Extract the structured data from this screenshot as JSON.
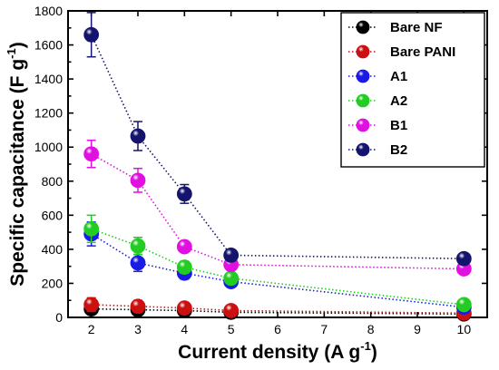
{
  "chart_data": {
    "type": "line",
    "title": "",
    "xlabel": "Current density (A g",
    "xlabel_sup": "-1",
    "xlabel_tail": ")",
    "ylabel": "Specific capacitance (F g",
    "ylabel_sup": "-1",
    "ylabel_tail": ")",
    "xlim": [
      1.5,
      10.5
    ],
    "ylim": [
      0,
      1800
    ],
    "x_ticks": [
      2,
      3,
      4,
      5,
      6,
      7,
      8,
      9,
      10
    ],
    "y_ticks": [
      0,
      200,
      400,
      600,
      800,
      1000,
      1200,
      1400,
      1600,
      1800
    ],
    "x": [
      2,
      3,
      4,
      5,
      10
    ],
    "legend_position": "top-right",
    "grid": false,
    "series": [
      {
        "name": "Bare NF",
        "color": "#000000",
        "values": [
          50,
          45,
          40,
          30,
          20
        ],
        "errors": [
          15,
          10,
          10,
          8,
          5
        ]
      },
      {
        "name": "Bare PANI",
        "color": "#cc1010",
        "values": [
          75,
          65,
          55,
          40,
          25
        ],
        "errors": [
          40,
          35,
          30,
          20,
          10
        ]
      },
      {
        "name": "A1",
        "color": "#1a1ae6",
        "values": [
          490,
          320,
          260,
          210,
          60
        ],
        "errors": [
          70,
          50,
          35,
          25,
          10
        ]
      },
      {
        "name": "A2",
        "color": "#22cc22",
        "values": [
          520,
          420,
          295,
          230,
          75
        ],
        "errors": [
          80,
          50,
          35,
          25,
          10
        ]
      },
      {
        "name": "B1",
        "color": "#e010e0",
        "values": [
          960,
          805,
          415,
          310,
          285
        ],
        "errors": [
          80,
          70,
          20,
          15,
          10
        ]
      },
      {
        "name": "B2",
        "color": "#14146e",
        "values": [
          1660,
          1065,
          725,
          365,
          345
        ],
        "errors": [
          130,
          85,
          55,
          20,
          15
        ]
      }
    ]
  }
}
